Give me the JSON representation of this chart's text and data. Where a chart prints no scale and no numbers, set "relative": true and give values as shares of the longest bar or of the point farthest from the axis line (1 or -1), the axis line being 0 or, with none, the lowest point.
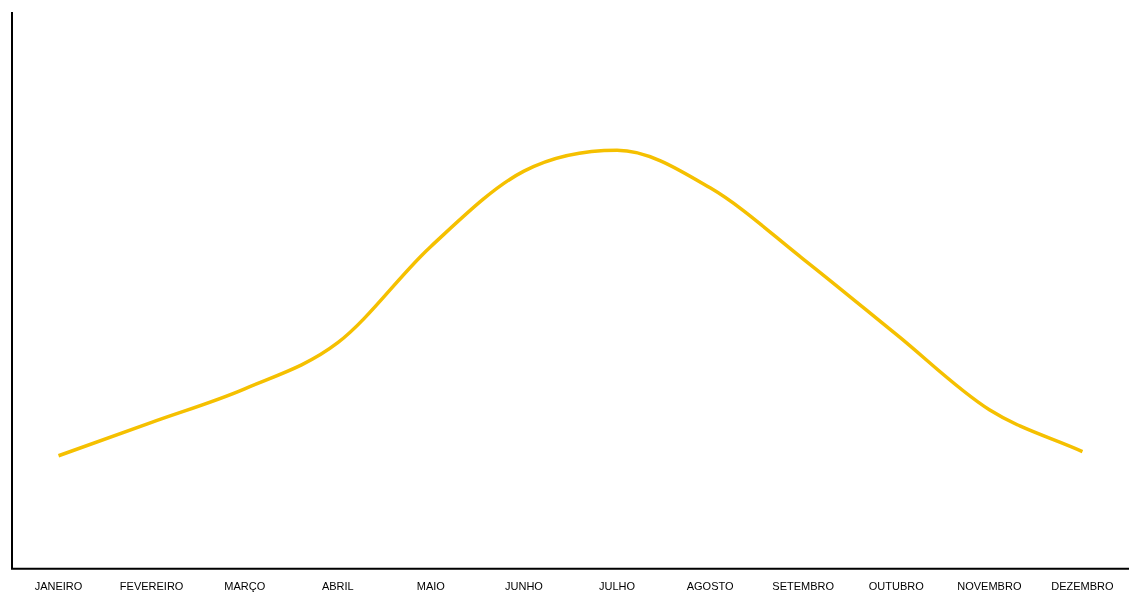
{
  "chart_data": {
    "type": "line",
    "relative": true,
    "categories": [
      "JANEIRO",
      "FEVEREIRO",
      "MARÇO",
      "ABRIL",
      "MAIO",
      "JUNHO",
      "JULHO",
      "AGOSTO",
      "SETEMBRO",
      "OUTUBRO",
      "NOVEMBRO",
      "DEZEMBRO"
    ],
    "series": [
      {
        "color": "#f5c000",
        "values": [
          0.27,
          0.35,
          0.43,
          0.54,
          0.77,
          0.95,
          1,
          0.91,
          0.74,
          0.56,
          0.38,
          0.28
        ]
      }
    ],
    "legend": false,
    "grid": false,
    "marker": "none",
    "line_style": "solid"
  }
}
